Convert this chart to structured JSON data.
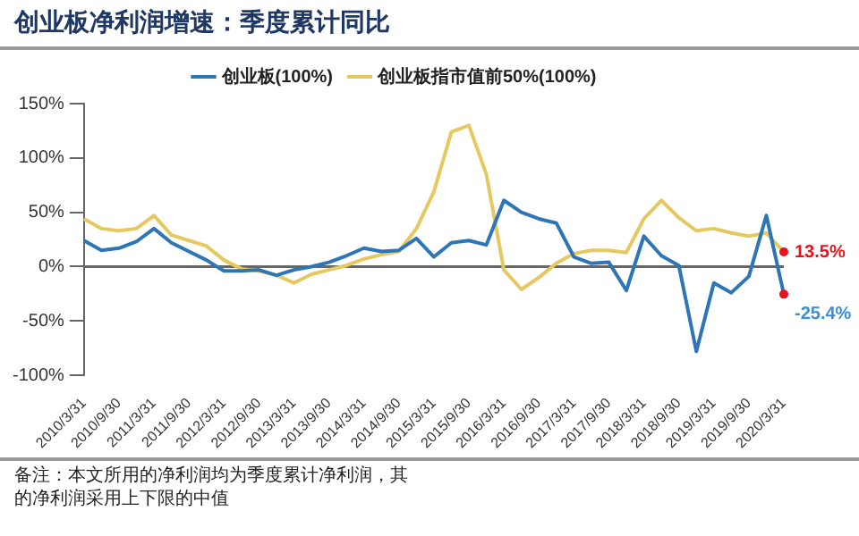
{
  "chart_data": {
    "type": "line",
    "title": "创业板净利润增速：季度累计同比",
    "categories": [
      "2010/3/31",
      null,
      "2010/9/30",
      null,
      "2011/3/31",
      null,
      "2011/9/30",
      null,
      "2012/3/31",
      null,
      "2012/9/30",
      null,
      "2013/3/31",
      null,
      "2013/9/30",
      null,
      "2014/3/31",
      null,
      "2014/9/30",
      null,
      "2015/3/31",
      null,
      "2015/9/30",
      null,
      "2016/3/31",
      null,
      "2016/9/30",
      null,
      "2017/3/31",
      null,
      "2017/9/30",
      null,
      "2018/3/31",
      null,
      "2018/9/30",
      null,
      "2019/3/31",
      null,
      "2019/9/30",
      null,
      "2020/3/31"
    ],
    "series": [
      {
        "name": "创业板(100%)",
        "color": "#2e75b6",
        "values": [
          24,
          15,
          17,
          23,
          35,
          22,
          14,
          6,
          -4,
          -4,
          -3,
          -8,
          -3,
          0,
          4,
          10,
          17,
          14,
          15,
          26,
          9,
          22,
          24,
          20,
          61,
          50,
          44,
          40,
          9,
          3,
          4,
          -22,
          28,
          10,
          1,
          -78,
          -15,
          -24,
          -9,
          47,
          -25.4
        ],
        "value_labels": [
          null,
          null,
          null,
          null,
          null,
          null,
          null,
          null,
          null,
          null,
          null,
          null,
          null,
          null,
          null,
          null,
          null,
          null,
          null,
          null,
          null,
          null,
          null,
          null,
          null,
          null,
          null,
          null,
          null,
          null,
          null,
          null,
          null,
          null,
          null,
          null,
          null,
          null,
          null,
          null,
          "-25.4%"
        ]
      },
      {
        "name": "创业板指市值前50%(100%)",
        "color": "#e6c860",
        "values": [
          44,
          35,
          33,
          35,
          47,
          29,
          24,
          19,
          6,
          -2,
          -4,
          -8,
          -15,
          -7,
          -3,
          1,
          7,
          11,
          14,
          35,
          69,
          124,
          130,
          85,
          -3,
          -21,
          -10,
          3,
          12,
          15,
          15,
          13,
          44,
          61,
          45,
          33,
          35,
          31,
          28,
          31,
          13.5
        ],
        "value_labels": [
          null,
          null,
          null,
          null,
          null,
          null,
          null,
          null,
          null,
          null,
          null,
          null,
          null,
          null,
          null,
          null,
          null,
          null,
          null,
          null,
          null,
          null,
          null,
          null,
          null,
          null,
          null,
          null,
          null,
          null,
          null,
          null,
          null,
          null,
          null,
          null,
          null,
          null,
          null,
          null,
          "13.5%"
        ]
      }
    ],
    "ylim": [
      -100,
      150
    ],
    "yticks": [
      {
        "value": -100,
        "label": "-100%"
      },
      {
        "value": -50,
        "label": "-50%"
      },
      {
        "value": 0,
        "label": "0%"
      },
      {
        "value": 50,
        "label": "50%"
      },
      {
        "value": 100,
        "label": "100%"
      },
      {
        "value": 150,
        "label": "150%"
      }
    ],
    "ref_lines": [
      {
        "axis": "y",
        "value": 0,
        "color": "#666666"
      }
    ],
    "grid": false,
    "legend": "top",
    "marker": "none",
    "line_style": "solid",
    "annotations": [
      "备注：本文所用的净利润均为季度累计净利润，其",
      "的净利润采用上下限的中值"
    ]
  }
}
